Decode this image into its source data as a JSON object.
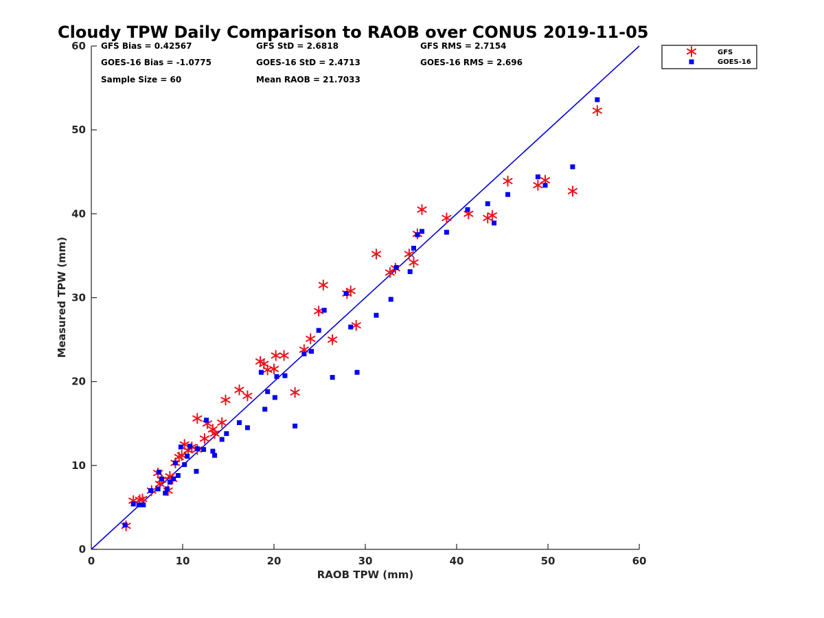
{
  "chart_data": {
    "type": "scatter",
    "title": "Cloudy TPW Daily Comparison to RAOB over CONUS 2019-11-05",
    "xlabel": "RAOB TPW (mm)",
    "ylabel": "Measured TPW (mm)",
    "xlim": [
      0,
      60
    ],
    "ylim": [
      0,
      60
    ],
    "xticks": [
      "0",
      "10",
      "20",
      "30",
      "40",
      "50",
      "60"
    ],
    "yticks": [
      "0",
      "10",
      "20",
      "30",
      "40",
      "50",
      "60"
    ],
    "grid": false,
    "legend_position": "top-right outside",
    "reference_line": {
      "x": [
        0,
        60
      ],
      "y": [
        0,
        60
      ],
      "color": "#0000dd"
    },
    "stats": [
      [
        "GFS Bias = 0.42567",
        "GFS StD = 2.6818",
        "GFS RMS = 2.7154"
      ],
      [
        "GOES-16 Bias = -1.0775",
        "GOES-16 StD = 2.4713",
        "GOES-16 RMS = 2.696"
      ],
      [
        "Sample Size = 60",
        "Mean RAOB = 21.7033",
        ""
      ]
    ],
    "series": [
      {
        "name": "GFS",
        "marker": "asterisk",
        "color": "#e8141b",
        "points": [
          [
            3.8,
            2.8
          ],
          [
            4.6,
            5.8
          ],
          [
            5.3,
            5.9
          ],
          [
            5.6,
            6.0
          ],
          [
            6.6,
            7.0
          ],
          [
            7.3,
            9.1
          ],
          [
            7.5,
            7.8
          ],
          [
            7.7,
            8.3
          ],
          [
            8.4,
            7.0
          ],
          [
            8.6,
            8.7
          ],
          [
            8.9,
            8.4
          ],
          [
            9.2,
            10.3
          ],
          [
            9.6,
            11.0
          ],
          [
            9.9,
            11.2
          ],
          [
            10.2,
            12.5
          ],
          [
            10.6,
            11.8
          ],
          [
            11.0,
            12.2
          ],
          [
            11.6,
            15.6
          ],
          [
            11.6,
            11.9
          ],
          [
            12.4,
            13.2
          ],
          [
            12.7,
            15.0
          ],
          [
            13.3,
            14.3
          ],
          [
            13.5,
            13.8
          ],
          [
            14.3,
            15.1
          ],
          [
            14.7,
            17.8
          ],
          [
            16.2,
            19.0
          ],
          [
            17.1,
            18.3
          ],
          [
            18.5,
            22.4
          ],
          [
            18.9,
            22.1
          ],
          [
            19.3,
            21.4
          ],
          [
            20.0,
            21.5
          ],
          [
            20.2,
            23.1
          ],
          [
            21.1,
            23.1
          ],
          [
            22.3,
            18.7
          ],
          [
            23.3,
            23.8
          ],
          [
            24.0,
            25.1
          ],
          [
            24.9,
            28.4
          ],
          [
            25.4,
            31.5
          ],
          [
            26.4,
            25.0
          ],
          [
            28.0,
            30.5
          ],
          [
            28.4,
            30.8
          ],
          [
            29.0,
            26.7
          ],
          [
            31.2,
            35.2
          ],
          [
            32.7,
            33.0
          ],
          [
            33.3,
            33.5
          ],
          [
            34.8,
            35.2
          ],
          [
            35.3,
            34.2
          ],
          [
            35.7,
            37.6
          ],
          [
            36.2,
            40.5
          ],
          [
            38.9,
            39.5
          ],
          [
            41.3,
            40.0
          ],
          [
            43.4,
            39.5
          ],
          [
            43.9,
            39.8
          ],
          [
            45.6,
            43.9
          ],
          [
            48.9,
            43.4
          ],
          [
            49.7,
            44.0
          ],
          [
            52.7,
            42.7
          ],
          [
            55.4,
            52.3
          ]
        ]
      },
      {
        "name": "GOES-16",
        "marker": "square",
        "color": "#0000f0",
        "points": [
          [
            3.7,
            2.9
          ],
          [
            4.6,
            5.4
          ],
          [
            5.2,
            5.3
          ],
          [
            5.7,
            5.3
          ],
          [
            6.5,
            7.0
          ],
          [
            7.3,
            7.2
          ],
          [
            7.4,
            9.2
          ],
          [
            7.7,
            8.4
          ],
          [
            8.1,
            6.7
          ],
          [
            8.3,
            7.2
          ],
          [
            8.6,
            8.0
          ],
          [
            9.0,
            8.4
          ],
          [
            9.2,
            10.3
          ],
          [
            9.5,
            8.8
          ],
          [
            9.8,
            12.2
          ],
          [
            10.2,
            10.1
          ],
          [
            10.5,
            11.1
          ],
          [
            10.8,
            12.3
          ],
          [
            11.5,
            9.3
          ],
          [
            11.6,
            12.0
          ],
          [
            12.3,
            11.9
          ],
          [
            12.6,
            15.4
          ],
          [
            13.3,
            11.7
          ],
          [
            13.5,
            11.2
          ],
          [
            14.3,
            13.1
          ],
          [
            14.8,
            13.8
          ],
          [
            16.2,
            15.1
          ],
          [
            17.1,
            14.5
          ],
          [
            18.6,
            21.1
          ],
          [
            19.0,
            16.7
          ],
          [
            19.3,
            18.8
          ],
          [
            20.1,
            18.1
          ],
          [
            20.3,
            20.6
          ],
          [
            21.2,
            20.7
          ],
          [
            22.3,
            14.7
          ],
          [
            23.3,
            23.3
          ],
          [
            24.1,
            23.6
          ],
          [
            24.9,
            26.1
          ],
          [
            25.5,
            28.5
          ],
          [
            26.4,
            20.5
          ],
          [
            27.9,
            30.5
          ],
          [
            28.4,
            26.5
          ],
          [
            29.1,
            21.1
          ],
          [
            31.2,
            27.9
          ],
          [
            32.8,
            29.8
          ],
          [
            33.4,
            33.6
          ],
          [
            34.9,
            33.1
          ],
          [
            35.3,
            35.9
          ],
          [
            35.7,
            37.5
          ],
          [
            36.2,
            37.9
          ],
          [
            38.9,
            37.8
          ],
          [
            41.2,
            40.5
          ],
          [
            43.4,
            41.2
          ],
          [
            44.1,
            38.9
          ],
          [
            45.6,
            42.3
          ],
          [
            48.9,
            44.4
          ],
          [
            49.7,
            43.4
          ],
          [
            52.7,
            45.6
          ],
          [
            55.4,
            53.6
          ]
        ]
      }
    ]
  }
}
